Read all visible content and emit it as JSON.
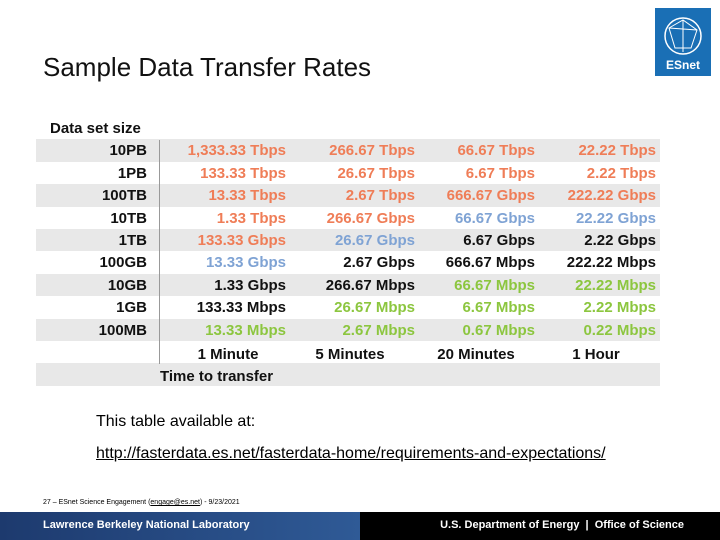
{
  "header": {
    "title": "Sample Data Transfer Rates",
    "logo": "ESnet"
  },
  "table": {
    "corner": "Data set size",
    "rows": [
      [
        "10PB",
        "1,333.33 Tbps",
        "266.67 Tbps",
        "66.67 Tbps",
        "22.22 Tbps"
      ],
      [
        "1PB",
        "133.33 Tbps",
        "26.67 Tbps",
        "6.67 Tbps",
        "2.22 Tbps"
      ],
      [
        "100TB",
        "13.33 Tbps",
        "2.67 Tbps",
        "666.67 Gbps",
        "222.22 Gbps"
      ],
      [
        "10TB",
        "1.33 Tbps",
        "266.67 Gbps",
        "66.67 Gbps",
        "22.22 Gbps"
      ],
      [
        "1TB",
        "133.33 Gbps",
        "26.67 Gbps",
        "6.67 Gbps",
        "2.22 Gbps"
      ],
      [
        "100GB",
        "13.33 Gbps",
        "2.67 Gbps",
        "666.67 Mbps",
        "222.22 Mbps"
      ],
      [
        "10GB",
        "1.33 Gbps",
        "266.67 Mbps",
        "66.67 Mbps",
        "22.22 Mbps"
      ],
      [
        "1GB",
        "133.33 Mbps",
        "26.67 Mbps",
        "6.67 Mbps",
        "2.22 Mbps"
      ],
      [
        "100MB",
        "13.33 Mbps",
        "2.67 Mbps",
        "0.67 Mbps",
        "0.22 Mbps"
      ]
    ],
    "columns": [
      "1 Minute",
      "5 Minutes",
      "20 Minutes",
      "1 Hour"
    ],
    "axis_label": "Time to transfer"
  },
  "note": {
    "text": "This table available at:",
    "url": "http://fasterdata.es.net/fasterdata-home/requirements-and-expectations/"
  },
  "footer": {
    "slide": "27 – ESnet Science Engagement (",
    "email": "engage@es.net",
    "date": ") - 9/23/2021",
    "lab": "Lawrence Berkeley National Laboratory",
    "agency": "U.S. Department of Energy  |  Office of Science"
  }
}
